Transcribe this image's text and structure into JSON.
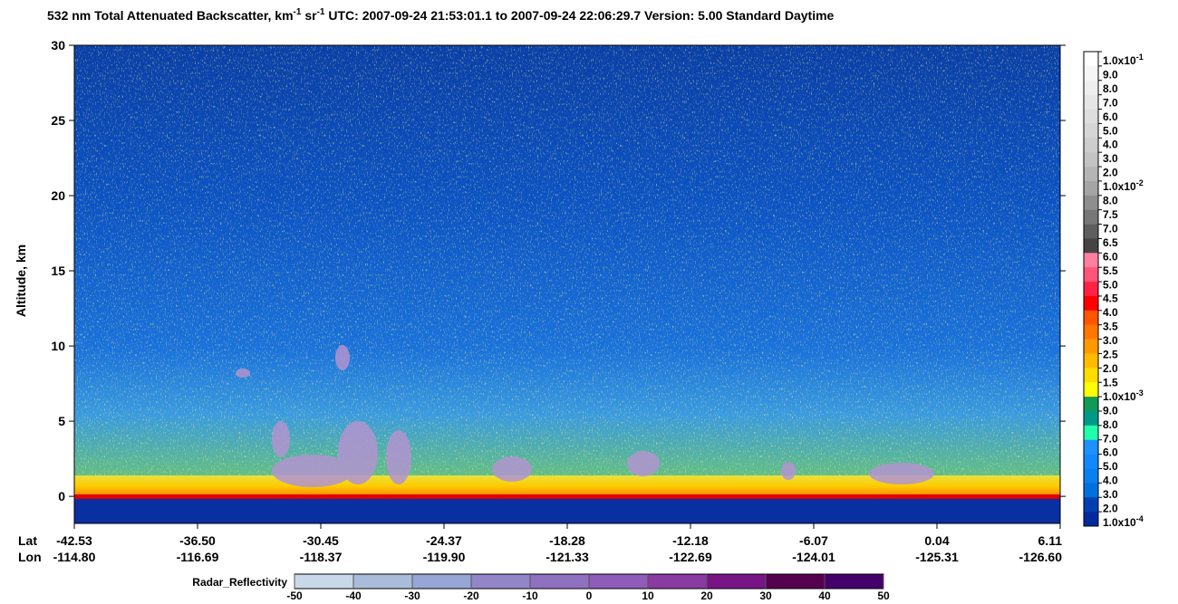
{
  "chart_data": {
    "type": "heatmap",
    "title_parts": [
      {
        "text": "532 nm Total Attenuated Backscatter, km"
      },
      {
        "text": "-1",
        "sup": true
      },
      {
        "text": " sr"
      },
      {
        "text": "-1",
        "sup": true
      },
      {
        "text": "    UTC:  2007-09-24 21:53:01.1  to  2007-09-24 22:06:29.7     Version: 5.00  Standard  Daytime"
      }
    ],
    "ylabel": "Altitude, km",
    "ylim": [
      -1.8,
      30
    ],
    "yticks": [
      0,
      5,
      10,
      15,
      20,
      25,
      30
    ],
    "x_rows": [
      {
        "name": "Lat",
        "labels": [
          "-42.53",
          "-36.50",
          "-30.45",
          "-24.37",
          "-18.28",
          "-12.18",
          "-6.07",
          "0.04",
          "6.11"
        ]
      },
      {
        "name": "Lon",
        "labels": [
          "-114.80",
          "-116.69",
          "-118.37",
          "-119.90",
          "-121.33",
          "-122.69",
          "-124.01",
          "-125.31",
          "-126.60"
        ]
      }
    ],
    "colorbar": {
      "labels": [
        {
          "text": "1.0x10",
          "sup": "-1"
        },
        {
          "text": "9.0"
        },
        {
          "text": "8.0"
        },
        {
          "text": "7.0"
        },
        {
          "text": "6.0"
        },
        {
          "text": "5.0"
        },
        {
          "text": "4.0"
        },
        {
          "text": "3.0"
        },
        {
          "text": "2.0"
        },
        {
          "text": "1.0x10",
          "sup": "-2"
        },
        {
          "text": "8.0"
        },
        {
          "text": "7.5"
        },
        {
          "text": "7.0"
        },
        {
          "text": "6.5"
        },
        {
          "text": "6.0"
        },
        {
          "text": "5.5"
        },
        {
          "text": "5.0"
        },
        {
          "text": "4.5"
        },
        {
          "text": "4.0"
        },
        {
          "text": "3.5"
        },
        {
          "text": "3.0"
        },
        {
          "text": "2.5"
        },
        {
          "text": "2.0"
        },
        {
          "text": "1.5"
        },
        {
          "text": "1.0x10",
          "sup": "-3"
        },
        {
          "text": "9.0"
        },
        {
          "text": "8.0"
        },
        {
          "text": "7.0"
        },
        {
          "text": "6.0"
        },
        {
          "text": "5.0"
        },
        {
          "text": "4.0"
        },
        {
          "text": "3.0"
        },
        {
          "text": "2.0"
        },
        {
          "text": "1.0x10",
          "sup": "-4"
        }
      ],
      "colors": [
        "#ffffff",
        "#f6f6f6",
        "#eeeeee",
        "#e6e6e6",
        "#dedede",
        "#d6d6d6",
        "#cdcdcd",
        "#c3c3c3",
        "#b5b5b5",
        "#a5a5a5",
        "#8e8e8e",
        "#777777",
        "#5e5e5e",
        "#444444",
        "#ff7fa0",
        "#ff5577",
        "#ff2244",
        "#ff0000",
        "#ff5500",
        "#ff7700",
        "#ff9900",
        "#ffbb00",
        "#ffdd00",
        "#ffff00",
        "#119955",
        "#009988",
        "#22ffaa",
        "#1e90ff",
        "#1188ff",
        "#0a80f0",
        "#0070e0",
        "#0040b0",
        "#002a9e"
      ]
    },
    "radar": {
      "label": "Radar_Reflectivity",
      "lim": [
        -50,
        50
      ],
      "ticks": [
        -50,
        -40,
        -30,
        -20,
        -10,
        0,
        10,
        20,
        30,
        40,
        50
      ],
      "colors": [
        "#c8d8e8",
        "#a9bddb",
        "#96a6d6",
        "#9286c8",
        "#9070c0",
        "#8f5cb8",
        "#8a3aa0",
        "#781486",
        "#560050",
        "#46006c"
      ]
    }
  }
}
